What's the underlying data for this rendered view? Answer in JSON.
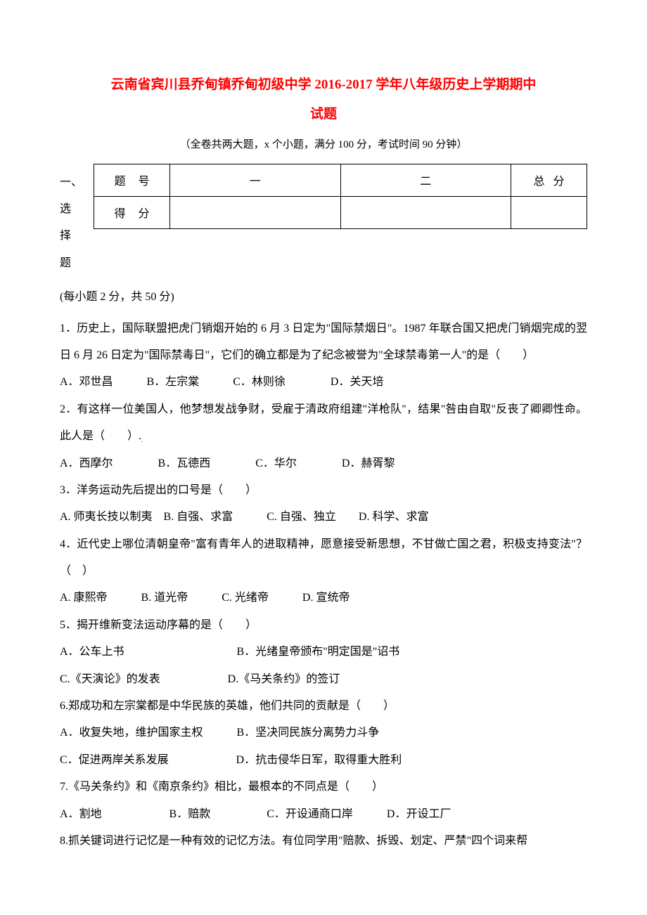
{
  "title_line1": "云南省宾川县乔甸镇乔甸初级中学 2016-2017 学年八年级历史上学期期中",
  "title_line2": "试题",
  "subtitle": "（全卷共两大题，x 个小题，满分 100 分，考试时间 90 分钟）",
  "table": {
    "left_col_chars": [
      "一、",
      "选",
      "择",
      "题"
    ],
    "row1_label": "题号",
    "row1_col1": "一",
    "row1_col2": "二",
    "row1_total": "总分",
    "row2_label": "得分"
  },
  "section_info": "(每小题 2 分，共 50 分)",
  "questions": [
    {
      "text": "1．历史上，国际联盟把虎门销烟开始的 6 月 3 日定为\"国际禁烟日\"。1987 年联合国又把虎门销烟完成的翌日 6 月 26 日定为\"国际禁毒日\"，它们的确立都是为了纪念被誉为\"全球禁毒第一人\"的是（　　）",
      "options": "A．邓世昌　　　B．左宗棠　　　C．林则徐　　　　D．关天培"
    },
    {
      "text": "2．有这样一位美国人，他梦想发战争财，受雇于清政府组建\"洋枪队\"，结果\"咎由自取\"反丧了卿卿性命。此人是（　　）.",
      "options": "A．西摩尔　　　　B．瓦德西　　　　C．华尔　　　　D．赫胥黎",
      "has_mark": true
    },
    {
      "text": "3．洋务运动先后提出的口号是（　　）",
      "options": "A. 师夷长技以制夷　B. 自强、求富　　　C. 自强、独立　　D. 科学、求富"
    },
    {
      "text": "4．近代史上哪位清朝皇帝\"富有青年人的进取精神，愿意接受新思想，不甘做亡国之君，积极支持变法\"？　（　）",
      "options": "A. 康熙帝　　　B. 道光帝　　　C. 光绪帝　　　D. 宣统帝"
    },
    {
      "text": "5．揭开维新变法运动序幕的是（　　）",
      "options_multi": [
        "A．公车上书　　　　　　　　　　B．光绪皇帝颁布\"明定国是\"诏书",
        "C.《天演论》的发表　　　　　　D.《马关条约》的签订"
      ]
    },
    {
      "text": "6.郑成功和左宗棠都是中华民族的英雄，他们共同的贡献是（　　）",
      "options_multi": [
        "A．收复失地，维护国家主权　　　B．坚决同民族分离势力斗争",
        "C．促进两岸关系发展　　　　　　D．抗击侵华日军，取得重大胜利"
      ]
    },
    {
      "text": "7.《马关条约》和《南京条约》相比，最根本的不同点是（　　）",
      "options": "A．割地　　　　　　B．赔款　　　　　C．开设通商口岸　　　D．开设工厂"
    },
    {
      "text": "8.抓关键词进行记忆是一种有效的记忆方法。有位同学用\"赔款、拆毁、划定、严禁\"四个词来帮"
    }
  ]
}
